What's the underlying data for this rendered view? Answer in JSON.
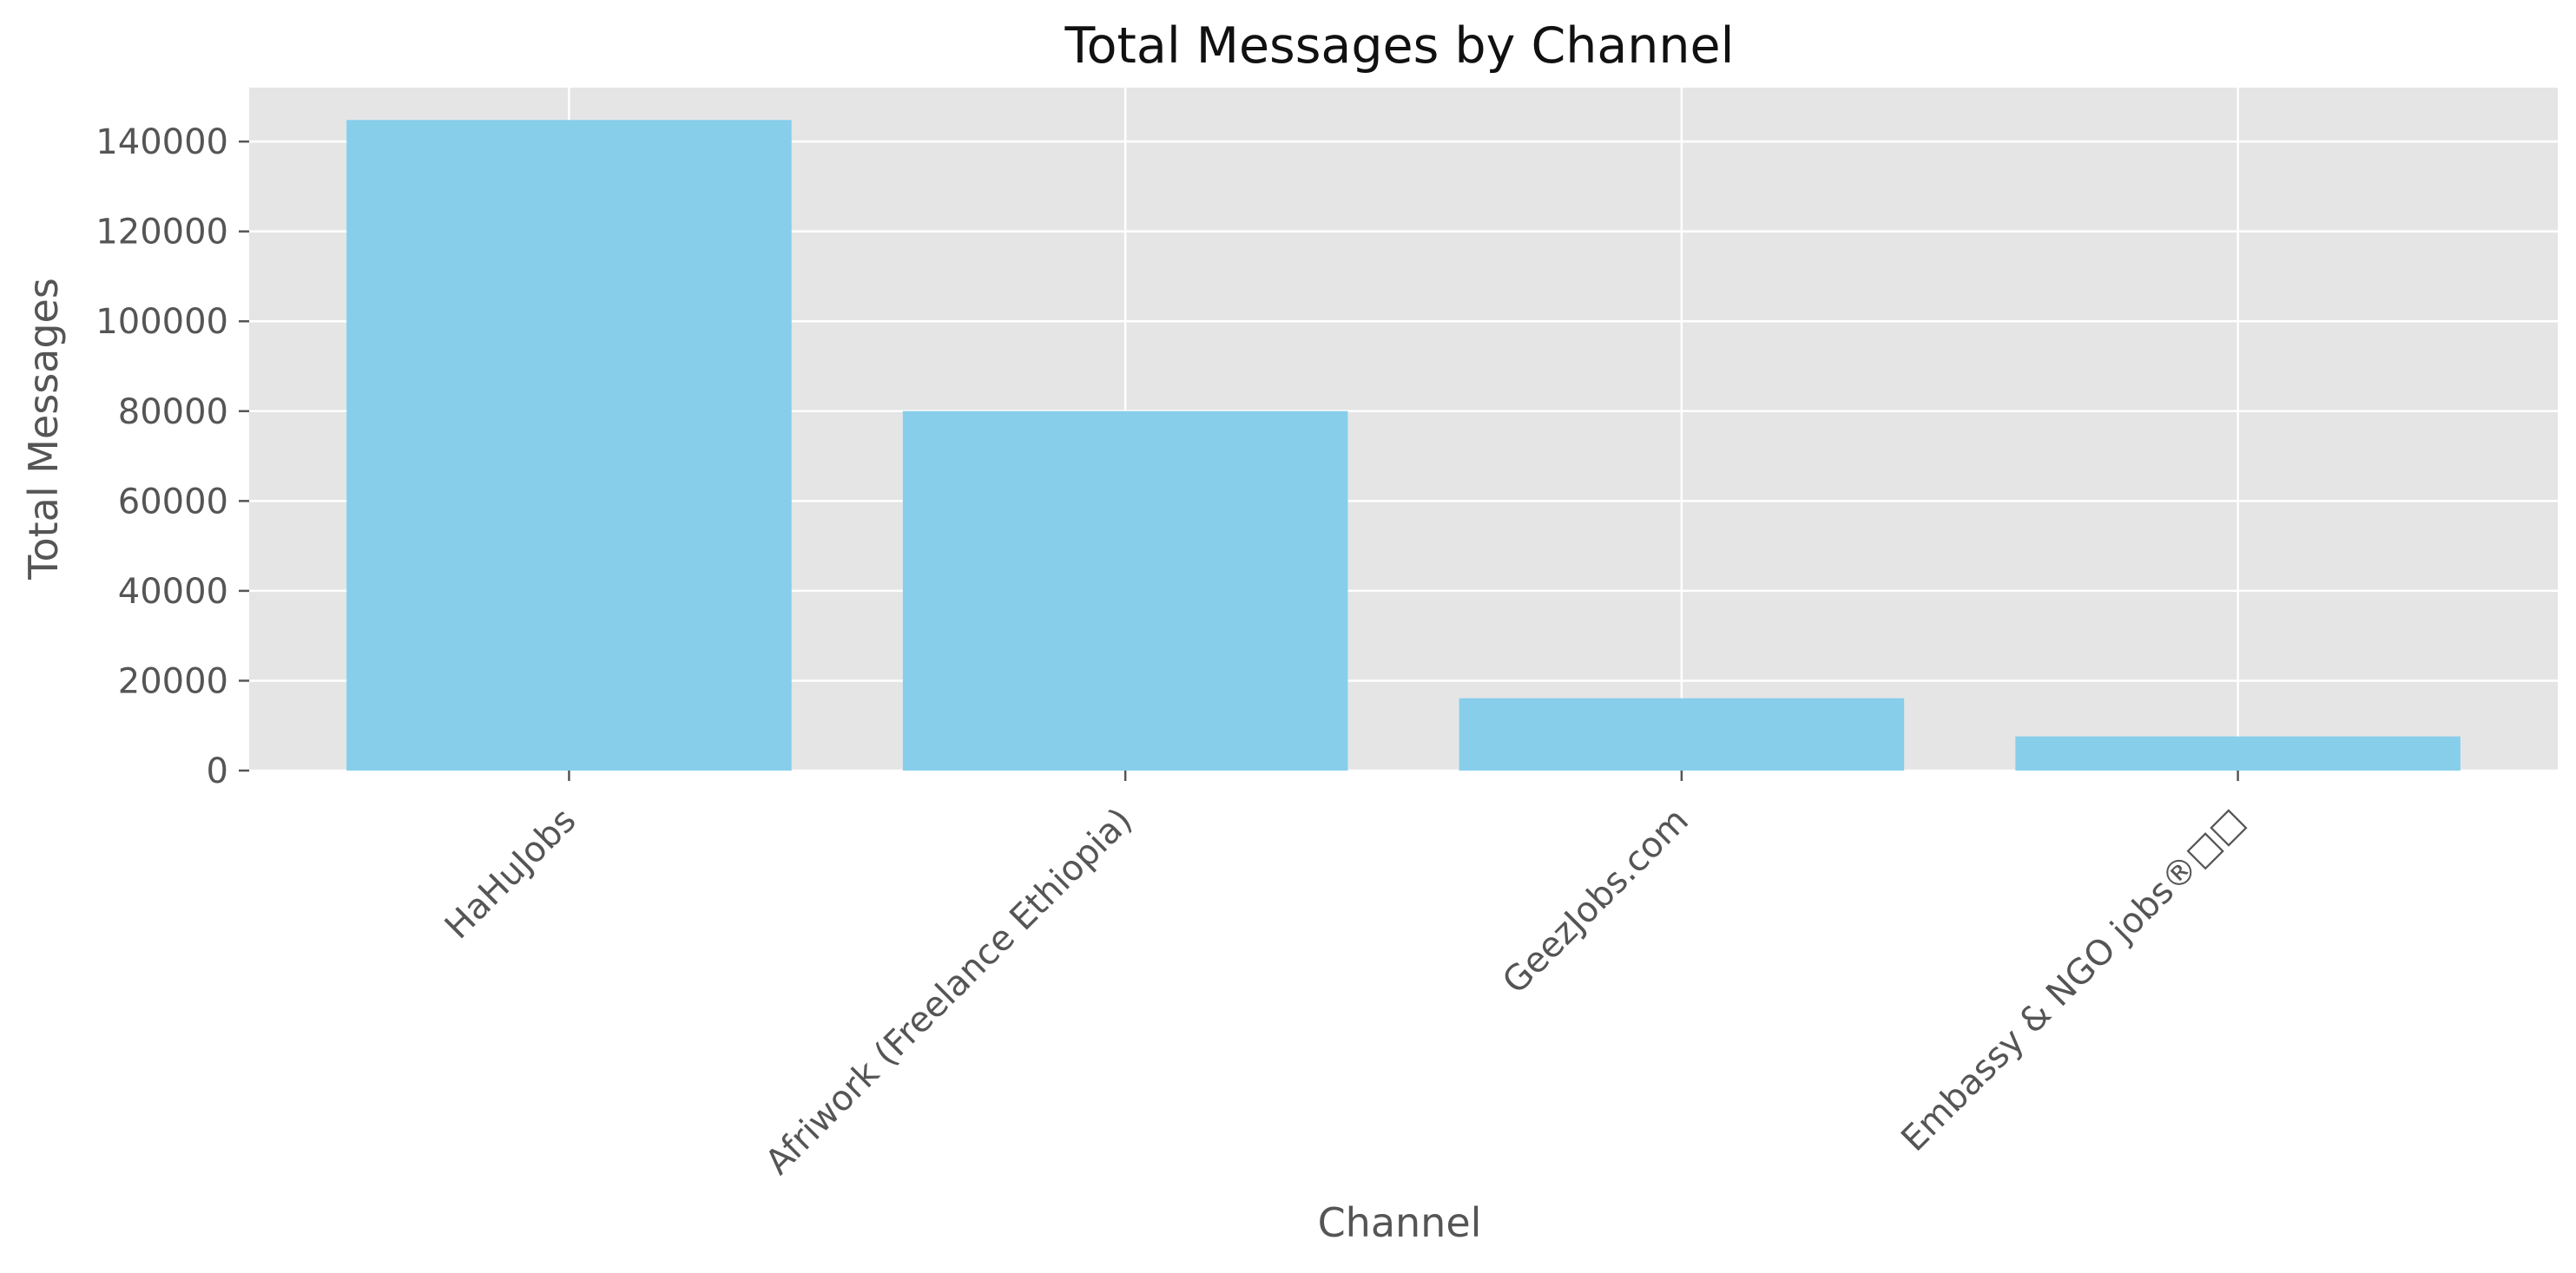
{
  "chart_data": {
    "type": "bar",
    "title": "Total Messages by Channel",
    "xlabel": "Channel",
    "ylabel": "Total Messages",
    "categories": [
      "HaHuJobs",
      "Afriwork (Freelance Ethiopia)",
      "GeezJobs.com",
      "Embassy & NGO jobs®□□"
    ],
    "values": [
      144800,
      80000,
      16100,
      7600
    ],
    "ylim": [
      0,
      152000
    ],
    "yticks": [
      0,
      20000,
      40000,
      60000,
      80000,
      100000,
      120000,
      140000
    ],
    "grid": true,
    "colors": {
      "bar": "#87ceeb",
      "plot_background": "#e5e5e5",
      "grid": "#ffffff",
      "text": "#555555",
      "title": "#111111"
    }
  }
}
